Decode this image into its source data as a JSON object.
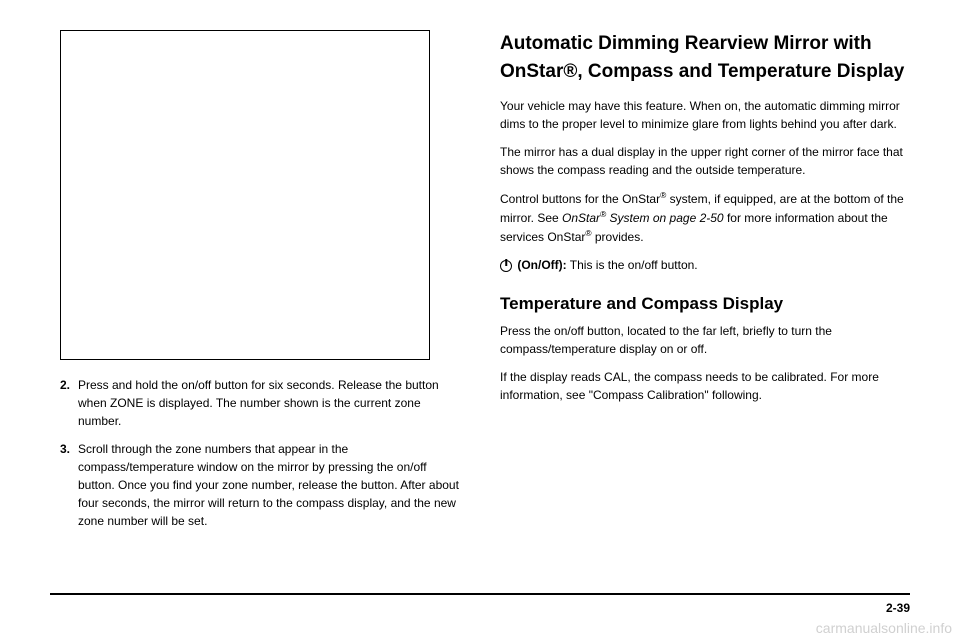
{
  "left": {
    "item2_num": "2.",
    "item2_text": "Press and hold the on/off button for six seconds. Release the button when ZONE is displayed. The number shown is the current zone number.",
    "item3_num": "3.",
    "item3_text": "Scroll through the zone numbers that appear in the compass/temperature window on the mirror by pressing the on/off button. Once you find your zone number, release the button. After about four seconds, the mirror will return to the compass display, and the new zone number will be set."
  },
  "right": {
    "heading": "Automatic Dimming Rearview Mirror with OnStar®, Compass and Temperature Display",
    "p1": "Your vehicle may have this feature. When on, the automatic dimming mirror dims to the proper level to minimize glare from lights behind you after dark.",
    "p2": "The mirror has a dual display in the upper right corner of the mirror face that shows the compass reading and the outside temperature.",
    "p3a": "Control buttons for the OnStar",
    "p3b": " system, if equipped, are at the bottom of the mirror. See ",
    "p3c": "OnStar",
    "p3d": " System on page 2-50",
    "p3e": " for more information about the services OnStar",
    "p3f": " provides.",
    "onoff_label": " (On/Off):",
    "onoff_text": "  This is the on/off button.",
    "subheading": "Temperature and Compass Display",
    "p4": "Press the on/off button, located to the far left, briefly to turn the compass/temperature display on or off.",
    "p5": "If the display reads CAL, the compass needs to be calibrated. For more information, see \"Compass Calibration\" following."
  },
  "footer": {
    "page": "2-39",
    "watermark": "carmanualsonline.info"
  }
}
